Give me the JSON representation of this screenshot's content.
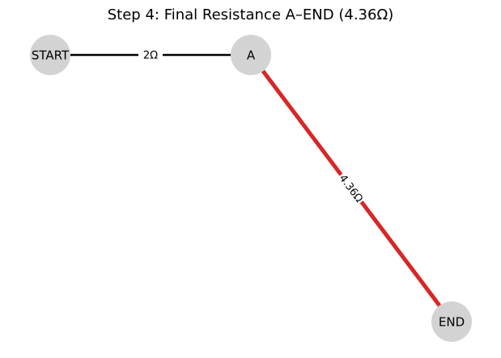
{
  "title": "Step 4: Final Resistance A–END (4.36Ω)",
  "colors": {
    "node_fill": "#d3d3d3",
    "edge_default": "#000000",
    "edge_highlight": "#d62728",
    "background": "#ffffff"
  },
  "nodes": [
    {
      "id": "START",
      "label": "START"
    },
    {
      "id": "A",
      "label": "A"
    },
    {
      "id": "END",
      "label": "END"
    }
  ],
  "edges": [
    {
      "from": "START",
      "to": "A",
      "label": "2Ω",
      "highlighted": false
    },
    {
      "from": "A",
      "to": "END",
      "label": "4.36Ω",
      "highlighted": true
    }
  ]
}
